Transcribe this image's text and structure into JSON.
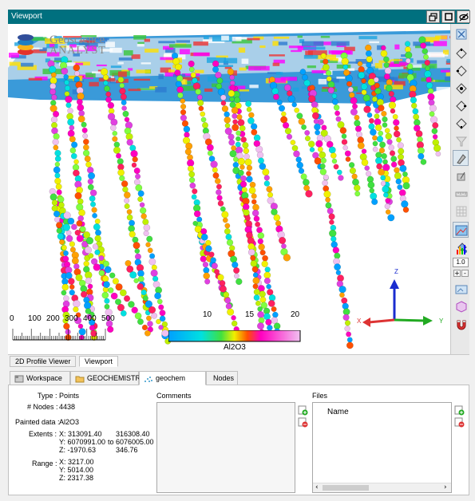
{
  "window": {
    "title": "Viewport"
  },
  "viewport": {
    "logo_text_1": "Geoscience",
    "logo_text_2": "ANALYST",
    "scale_bar": {
      "labels": [
        "0",
        "100",
        "200",
        "300",
        "400",
        "500"
      ]
    },
    "color_bar": {
      "labels": [
        "10",
        "15",
        "20"
      ],
      "field": "Al2O3"
    },
    "axes": {
      "x": "X",
      "y": "Y",
      "z": "Z"
    }
  },
  "toolbar": {
    "zoom_value": "1.0",
    "plus": "+",
    "minus": "-"
  },
  "view_tabs": [
    {
      "label": "2D Profile Viewer",
      "active": false
    },
    {
      "label": "Viewport",
      "active": true
    }
  ],
  "object_tabs": [
    {
      "label": "Workspace",
      "icon": "workspace-icon",
      "active": false
    },
    {
      "label": "GEOCHEMISTRY",
      "icon": "folder-icon",
      "active": false
    },
    {
      "label": "geochem",
      "icon": "points-icon",
      "active": true
    },
    {
      "label": "Nodes",
      "icon": "",
      "active": false
    }
  ],
  "properties": {
    "type_label": "Type :",
    "type_value": "Points",
    "nodes_label": "# Nodes :",
    "nodes_value": "4438",
    "painted_label": "Painted data :",
    "painted_value": "Al2O3",
    "extents_label": "Extents :",
    "extents": {
      "x_min": "X: 313091.40",
      "y_min": "Y: 6070991.00",
      "z_min": "Z: -1970.63",
      "to": "to",
      "x_max": "316308.40",
      "y_max": "6076005.00",
      "z_max": "346.76"
    },
    "range_label": "Range :",
    "range": {
      "x": "X: 3217.00",
      "y": "Y: 5014.00",
      "z": "Z: 2317.38"
    }
  },
  "comments": {
    "header": "Comments"
  },
  "files": {
    "header": "Files",
    "column": "Name"
  }
}
